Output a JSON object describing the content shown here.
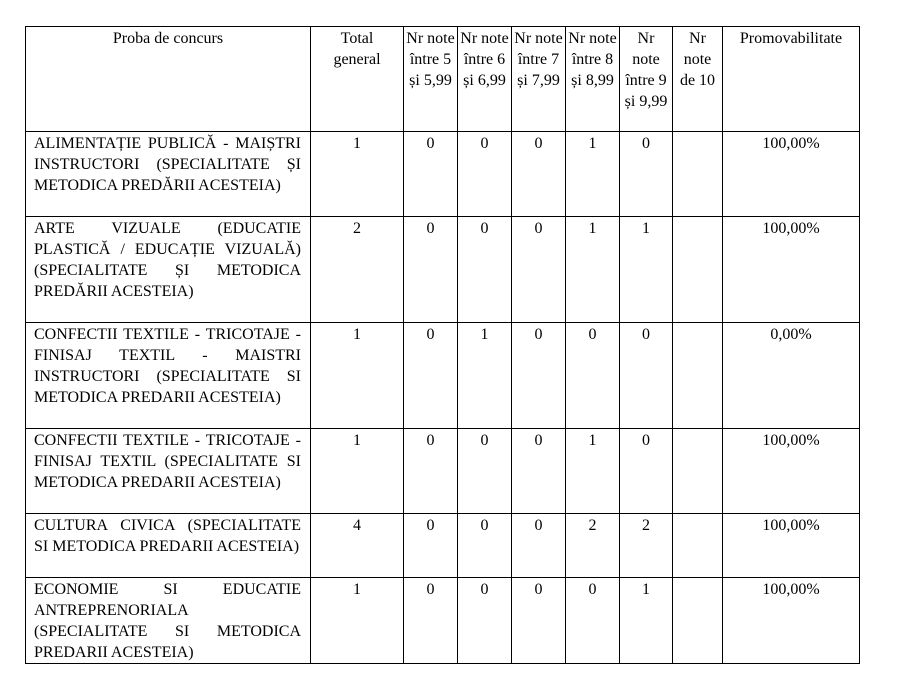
{
  "headers": [
    "Proba de concurs",
    "Total general",
    "Nr note între 5 și 5,99",
    "Nr note între 6 și 6,99",
    "Nr note între 7 și 7,99",
    "Nr note între 8 și 8,99",
    "Nr note între 9 și 9,99",
    "Nr note de 10",
    "Promovabilitate"
  ],
  "rows": [
    {
      "name": "ALIMENTAȚIE PUBLICĂ - MAIȘTRI INSTRUCTORI (SPECIALITATE ȘI METODICA PREDĂRII ACESTEIA)",
      "total": "1",
      "n5": "0",
      "n6": "0",
      "n7": "0",
      "n8": "1",
      "n9": "0",
      "n10": "",
      "prom": "100,00%"
    },
    {
      "name": "ARTE VIZUALE (EDUCATIE PLASTICĂ / EDUCAȚIE VIZUALĂ) (SPECIALITATE ȘI METODICA PREDĂRII ACESTEIA)",
      "total": "2",
      "n5": "0",
      "n6": "0",
      "n7": "0",
      "n8": "1",
      "n9": "1",
      "n10": "",
      "prom": "100,00%"
    },
    {
      "name": "CONFECTII TEXTILE - TRICOTAJE - FINISAJ TEXTIL - MAISTRI INSTRUCTORI (SPECIALITATE SI METODICA PREDARII ACESTEIA)",
      "total": "1",
      "n5": "0",
      "n6": "1",
      "n7": "0",
      "n8": "0",
      "n9": "0",
      "n10": "",
      "prom": "0,00%"
    },
    {
      "name": "CONFECTII TEXTILE - TRICOTAJE - FINISAJ TEXTIL (SPECIALITATE SI METODICA PREDARII ACESTEIA)",
      "total": "1",
      "n5": "0",
      "n6": "0",
      "n7": "0",
      "n8": "1",
      "n9": "0",
      "n10": "",
      "prom": "100,00%"
    },
    {
      "name": "CULTURA CIVICA (SPECIALITATE SI METODICA PREDARII ACESTEIA)",
      "total": "4",
      "n5": "0",
      "n6": "0",
      "n7": "0",
      "n8": "2",
      "n9": "2",
      "n10": "",
      "prom": "100,00%"
    },
    {
      "name": "ECONOMIE SI EDUCATIE ANTREPRENORIALA (SPECIALITATE SI METODICA PREDARII ACESTEIA)",
      "total": "1",
      "n5": "0",
      "n6": "0",
      "n7": "0",
      "n8": "0",
      "n9": "1",
      "n10": "",
      "prom": "100,00%"
    }
  ]
}
